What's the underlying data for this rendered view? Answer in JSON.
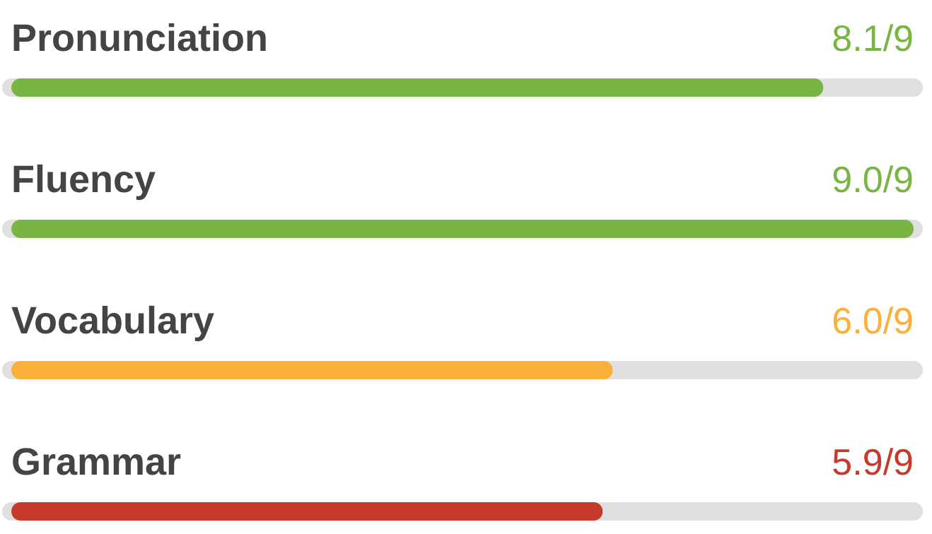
{
  "chart_data": {
    "type": "bar",
    "orientation": "horizontal",
    "categories": [
      "Pronunciation",
      "Fluency",
      "Vocabulary",
      "Grammar"
    ],
    "values": [
      8.1,
      9.0,
      6.0,
      5.9
    ],
    "colors": [
      "#79b543",
      "#79b543",
      "#fbb03b",
      "#c63a2b"
    ],
    "xlim": [
      0,
      9
    ],
    "value_labels": [
      "8.1/9",
      "9.0/9",
      "6.0/9",
      "5.9/9"
    ],
    "tick_labels": "y"
  }
}
